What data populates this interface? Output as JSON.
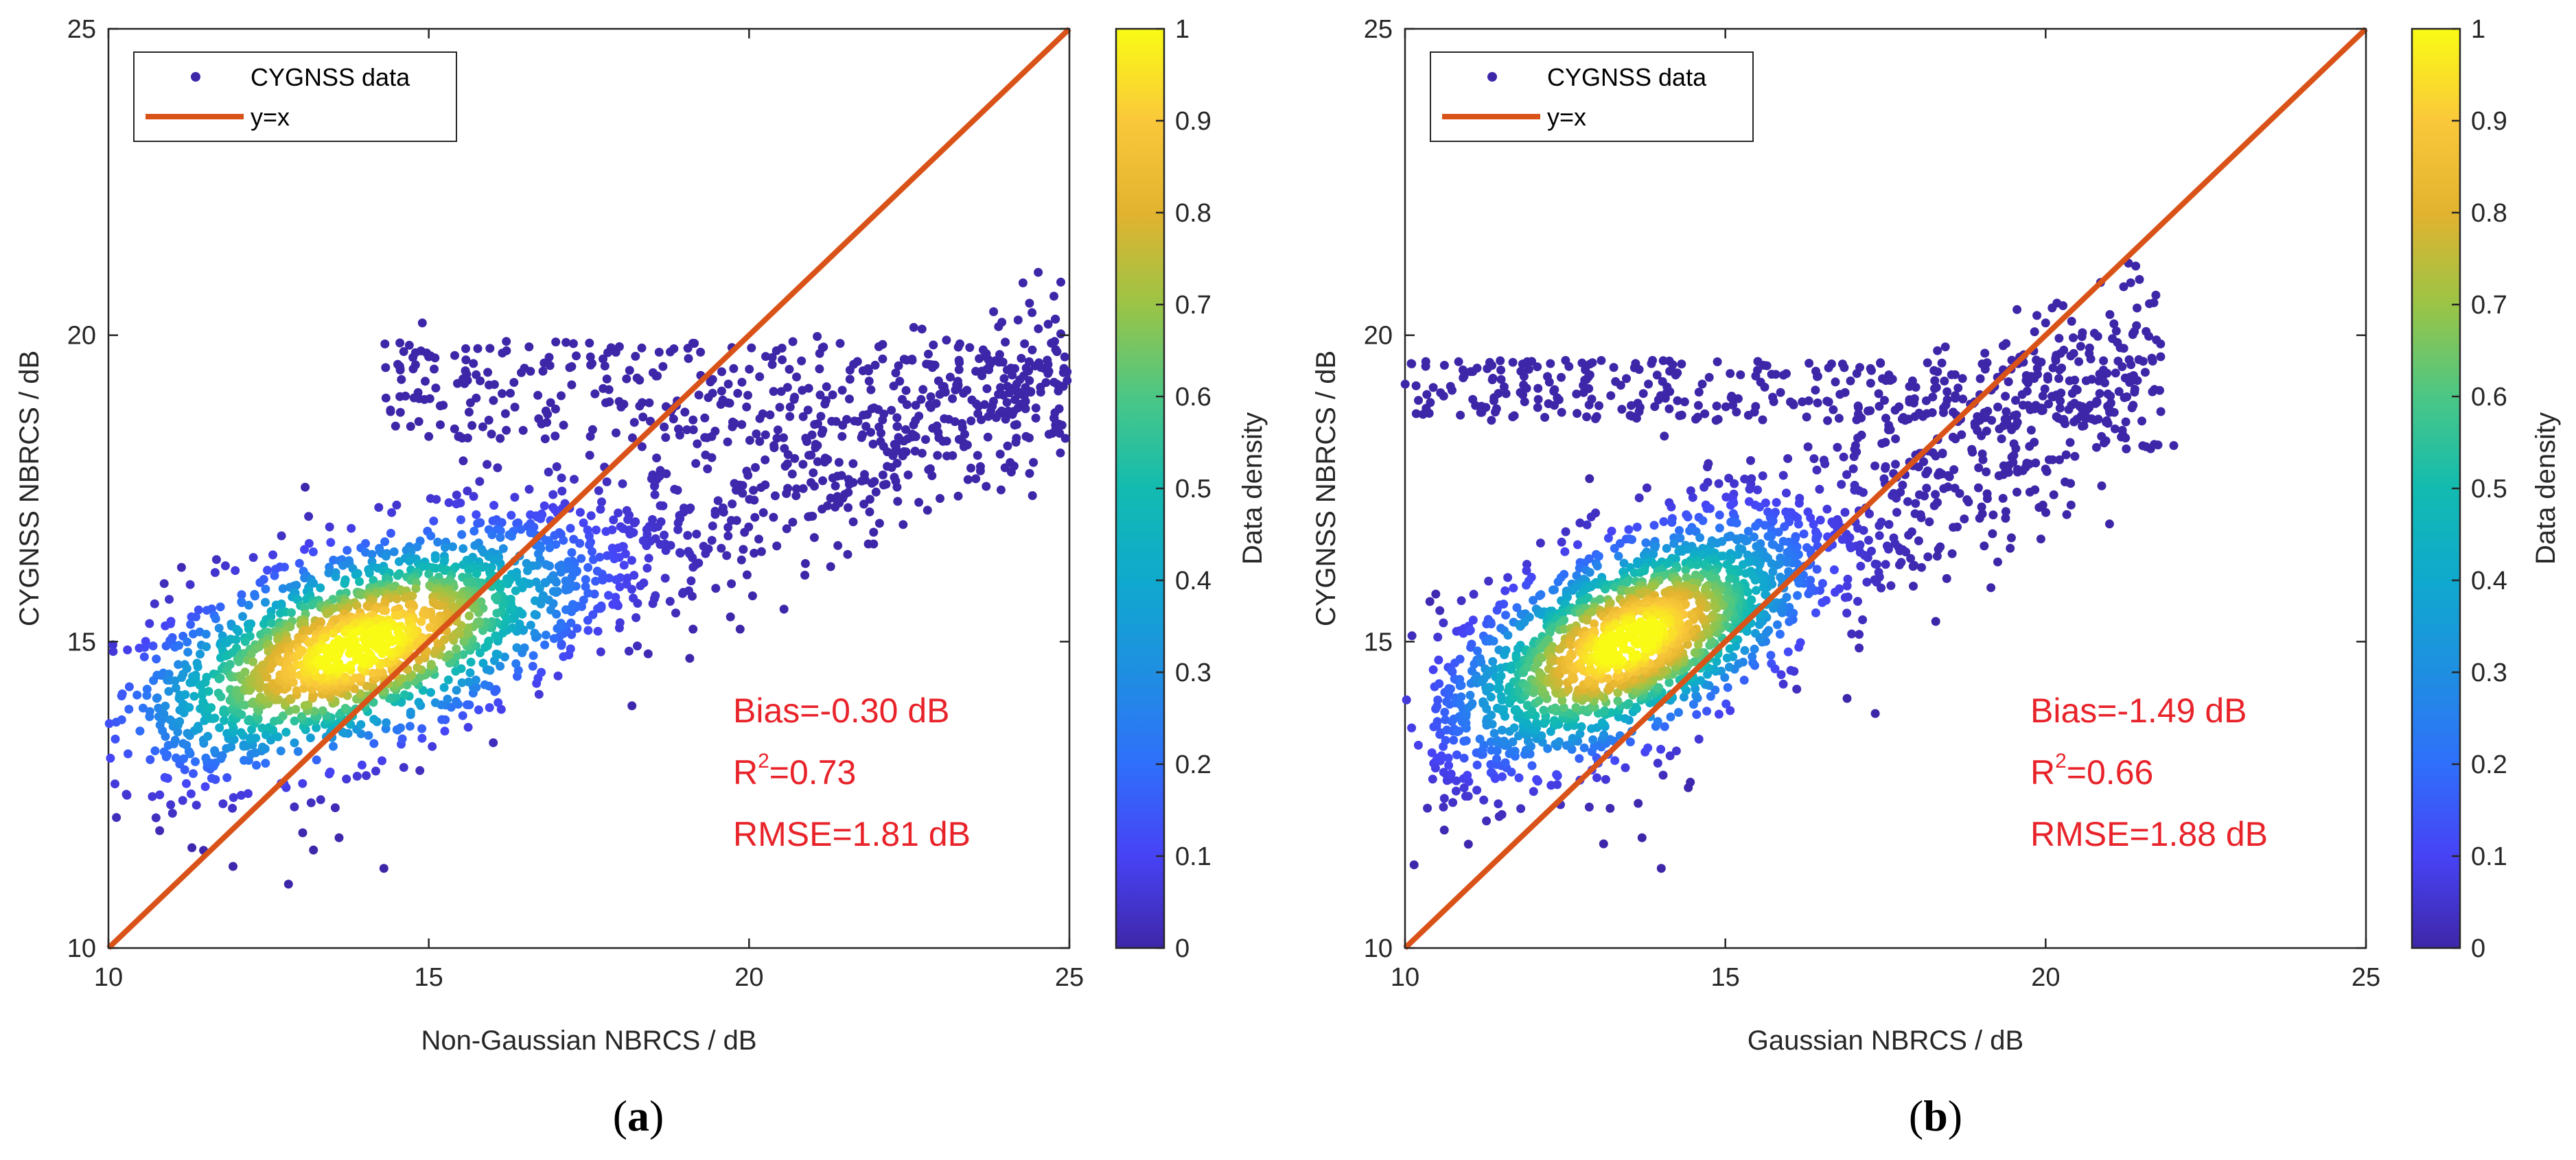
{
  "colors": {
    "identity_line": "#d95319",
    "stat_text": "#e8232a",
    "axis": "#262626",
    "legend_marker": "#3e26a8"
  },
  "chart_data": [
    {
      "type": "scatter",
      "panel_label": "a",
      "xlabel": "Non-Gaussian NBRCS / dB",
      "ylabel": "CYGNSS NBRCS / dB",
      "xlim": [
        10,
        25
      ],
      "ylim": [
        10,
        25
      ],
      "xticks": [
        "10",
        "15",
        "20",
        "25"
      ],
      "yticks": [
        "10",
        "15",
        "20",
        "25"
      ],
      "legend": {
        "position": "top-left",
        "entries": [
          {
            "label": "CYGNSS data",
            "kind": "marker"
          },
          {
            "label": "y=x",
            "kind": "line"
          }
        ]
      },
      "reference_line": {
        "name": "y=x",
        "from": [
          10,
          10
        ],
        "to": [
          25,
          25
        ]
      },
      "density_core": {
        "center": [
          13.9,
          14.9
        ],
        "spread": [
          1.9,
          1.05
        ],
        "rho": 0.55
      },
      "main_cloud": {
        "x_range": [
          10.7,
          25.0
        ],
        "slope": 0.38,
        "intercept_at_x10": 13.55,
        "y_spread": 0.75
      },
      "upper_band": {
        "x_range": [
          14.3,
          25.0
        ],
        "y_range": [
          18.3,
          19.9
        ]
      },
      "outliers": [
        [
          14.9,
          20.2
        ],
        [
          22.7,
          20.1
        ],
        [
          14.3,
          11.3
        ],
        [
          13.6,
          11.8
        ],
        [
          13.2,
          11.6
        ],
        [
          11.0,
          12.2
        ],
        [
          10.8,
          12.5
        ]
      ],
      "colorbar": {
        "label": "Data density",
        "ticks": [
          "0",
          "0.1",
          "0.2",
          "0.3",
          "0.4",
          "0.5",
          "0.6",
          "0.7",
          "0.8",
          "0.9",
          "1"
        ]
      },
      "stats": {
        "bias_label": "Bias=-0.30 dB",
        "r2_label": "R",
        "r2_sup": "2",
        "r2_value": "=0.73",
        "rmse_label": "RMSE=1.81 dB"
      },
      "legend_labels": {
        "data": "CYGNSS data",
        "line": "y=x"
      }
    },
    {
      "type": "scatter",
      "panel_label": "b",
      "xlabel": "Gaussian NBRCS / dB",
      "ylabel": "CYGNSS NBRCS / dB",
      "xlim": [
        10,
        25
      ],
      "ylim": [
        10,
        25
      ],
      "xticks": [
        "10",
        "15",
        "20",
        "25"
      ],
      "yticks": [
        "10",
        "15",
        "20",
        "25"
      ],
      "legend": {
        "position": "top-left",
        "entries": [
          {
            "label": "CYGNSS data",
            "kind": "marker"
          },
          {
            "label": "y=x",
            "kind": "line"
          }
        ]
      },
      "reference_line": {
        "name": "y=x",
        "from": [
          10,
          10
        ],
        "to": [
          25,
          25
        ]
      },
      "density_core": {
        "center": [
          13.5,
          15.0
        ],
        "spread": [
          1.5,
          1.05
        ],
        "rho": 0.55
      },
      "main_cloud": {
        "x_range": [
          10.4,
          21.8
        ],
        "slope": 0.55,
        "intercept_at_x10": 13.2,
        "y_spread": 0.8
      },
      "upper_band": {
        "x_range": [
          10.0,
          21.5
        ],
        "y_range": [
          18.6,
          19.6
        ]
      },
      "outliers": [
        [
          20.0,
          20.2
        ],
        [
          14.0,
          11.3
        ],
        [
          13.7,
          11.8
        ],
        [
          13.1,
          11.7
        ],
        [
          10.6,
          12.3
        ],
        [
          22.0,
          18.2
        ]
      ],
      "colorbar": {
        "label": "Data density",
        "ticks": [
          "0",
          "0.1",
          "0.2",
          "0.3",
          "0.4",
          "0.5",
          "0.6",
          "0.7",
          "0.8",
          "0.9",
          "1"
        ]
      },
      "stats": {
        "bias_label": "Bias=-1.49 dB",
        "r2_label": "R",
        "r2_sup": "2",
        "r2_value": "=0.66",
        "rmse_label": "RMSE=1.88 dB"
      },
      "legend_labels": {
        "data": "CYGNSS data",
        "line": "y=x"
      }
    }
  ]
}
